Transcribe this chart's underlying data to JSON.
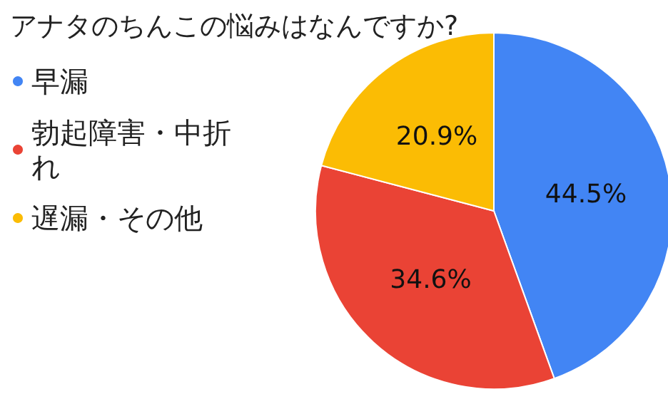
{
  "chart_data": {
    "type": "pie",
    "title": "アナタのちんこの悩みはなんですか?",
    "categories": [
      "早漏",
      "勃起障害・中折れ",
      "遅漏・その他"
    ],
    "values": [
      44.5,
      34.6,
      20.9
    ],
    "colors": [
      "#4285f4",
      "#ea4335",
      "#fbbc04"
    ],
    "value_labels": [
      "44.5%",
      "34.6%",
      "20.9%"
    ],
    "legend": "left"
  }
}
